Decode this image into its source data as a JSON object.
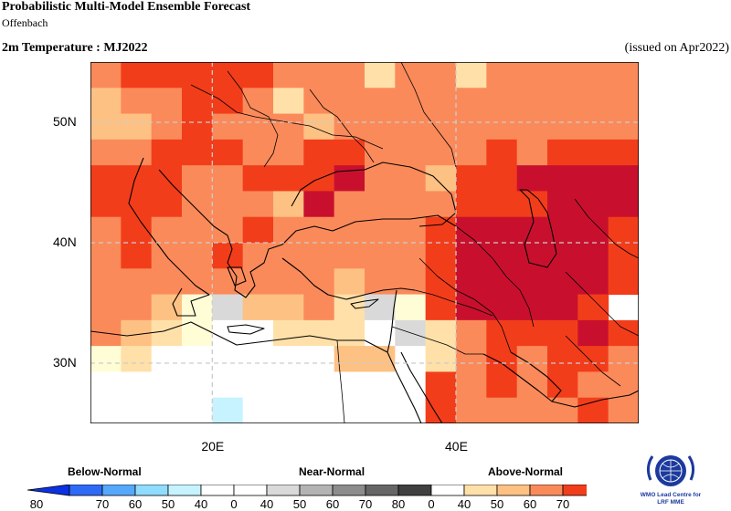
{
  "header": {
    "title": "Probabilistic Multi-Model Ensemble Forecast",
    "subtitle": "Offenbach",
    "variable": "2m Temperature : MJ2022",
    "issued": "(issued on Apr2022)"
  },
  "map": {
    "lat_labels": [
      "50N",
      "40N",
      "30N"
    ],
    "lon_labels": [
      "20E",
      "40E"
    ],
    "lat_values": [
      50,
      40,
      30
    ],
    "lon_values": [
      20,
      40
    ],
    "extent": {
      "lon_min": 10,
      "lon_max": 55,
      "lat_min": 25,
      "lat_max": 55
    },
    "grid_step_deg": 2.5,
    "palette": {
      "A40": "#ffe0a8",
      "A50": "#fdc183",
      "A60": "#fb8a5a",
      "A70": "#f23d1b",
      "A80": "#c8102e",
      "N40": "#d9d9d9",
      "W": "#ffffff",
      "N": "#fffdd6",
      "B40": "#c6f3ff",
      "land": "#000000"
    },
    "grid_rows": [
      "A60 A70 A70 A70 A70 A70 A60 A60 A60 A40 A60 A60 A40 A60 A60 A60 A60 A60",
      "A50 A60 A60 A70 A70 A60 A40 A60 A60 A60 A60 A60 A60 A60 A60 A60 A60 A60",
      "A50 A50 A60 A70 A60 A60 A60 A50 A60 A60 A60 A60 A60 A60 A60 A60 A60 A60",
      "A60 A60 A70 A70 A70 A60 A60 A70 A70 A60 A60 A60 A60 A70 A60 A70 A70 A70",
      "A70 A70 A70 A60 A60 A70 A70 A70 A80 A60 A60 A50 A70 A70 A80 A80 A80 A80",
      "A70 A70 A70 A60 A60 A60 A50 A80 A60 A60 A60 A60 A70 A70 A70 A80 A80 A80",
      "A60 A70 A60 A60 A60 A70 A60 A60 A60 A60 A60 A70 A80 A80 A80 A80 A80 A70",
      "A60 A70 A60 A60 A70 A60 A60 A60 A60 A60 A60 A70 A80 A80 A80 A80 A80 A70",
      "A60 A60 A60 A60 A60 A60 A60 A60 A50 A60 A60 A70 A80 A80 A80 A80 A80 A70",
      "A60 A60 A50 N N40 A50 A50 A60 A40 N40 N A70 A80 A80 A80 A80 A70",
      "A60 A50 A40 N W W A40 A40 A40 W N40 A40 A60 A70 A70 A70 A80 A70",
      "N A40 W W W W W W A50 A50 W A40 A60 A70 A60 A70 A70 A60",
      "W W W W W W W W W W W A70 A60 A70 A60 A70 A60 A60",
      "W W W W W W W W W W W A70 A60 A60 A60 A60 A70 A60"
    ],
    "cell_b40": {
      "row": 13,
      "col": 4
    }
  },
  "legend": {
    "categories": [
      "Below-Normal",
      "Near-Normal",
      "Above-Normal"
    ],
    "unit": "[%]",
    "tick_labels": [
      "80",
      "70",
      "60",
      "50",
      "40",
      "0",
      "40",
      "50",
      "60",
      "70",
      "80",
      "0",
      "40",
      "50",
      "60",
      "70",
      "80"
    ],
    "below_colors": [
      "#0b31e3",
      "#2f6af7",
      "#56a8fb",
      "#8fdcff",
      "#c6f3ff"
    ],
    "neutral_color": "#ffffff",
    "near_colors": [
      "#d9d9d9",
      "#b3b3b3",
      "#8c8c8c",
      "#666666",
      "#404040"
    ],
    "above_colors": [
      "#ffe0a8",
      "#fdc183",
      "#fb8a5a",
      "#f23d1b",
      "#c8102e"
    ]
  },
  "logo": {
    "line1": "WMO Lead Centre for",
    "line2": "LRF MME",
    "icon": "wmo-emblem-icon"
  }
}
